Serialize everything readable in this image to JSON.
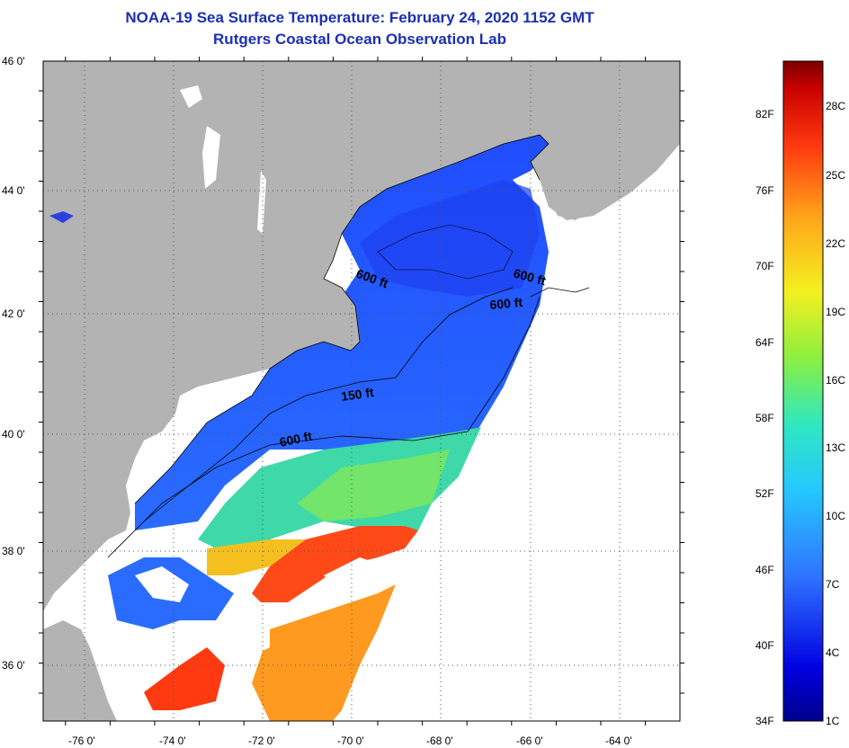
{
  "title": "NOAA-19 Sea Surface Temperature:  February 24, 2020 1152 GMT",
  "subtitle": "Rutgers Coastal Ocean Observation Lab",
  "lat_ticks": [
    "46 0'",
    "44 0'",
    "42 0'",
    "40 0'",
    "38 0'",
    "36 0'"
  ],
  "lon_ticks": [
    "-76 0'",
    "-74 0'",
    "-72 0'",
    "-70 0'",
    "-68 0'",
    "-66 0'",
    "-64 0'"
  ],
  "contour_labels": [
    "600 ft",
    "600 ft",
    "600 ft",
    "150 ft",
    "600 ft"
  ],
  "colorbar": {
    "fahrenheit": [
      "82F",
      "76F",
      "70F",
      "64F",
      "58F",
      "52F",
      "46F",
      "40F",
      "34F"
    ],
    "celsius": [
      "28C",
      "25C",
      "22C",
      "19C",
      "16C",
      "13C",
      "10C",
      "7C",
      "4C",
      "1C"
    ]
  },
  "colors": {
    "land": "#b3b3b3",
    "cloud": "#ffffff",
    "title": "#1c2fb4",
    "cold": "#1e50ff",
    "warm": "#ff3a10"
  }
}
